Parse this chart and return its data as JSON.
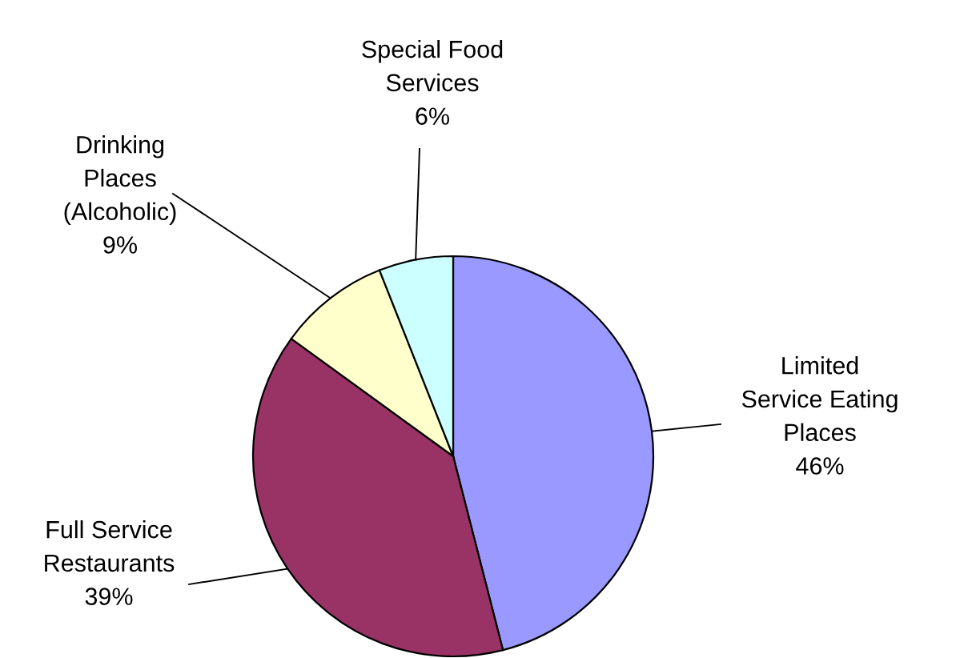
{
  "chart_data": {
    "type": "pie",
    "categories": [
      "Limited\nService Eating\nPlaces",
      "Full Service\nRestaurants",
      "Drinking\nPlaces\n(Alcoholic)",
      "Special Food\nServices"
    ],
    "values": [
      46,
      39,
      9,
      6
    ],
    "colors": [
      "#9999ff",
      "#993366",
      "#ffffcc",
      "#ccffff"
    ],
    "value_labels": [
      "46%",
      "39%",
      "9%",
      "6%"
    ]
  }
}
